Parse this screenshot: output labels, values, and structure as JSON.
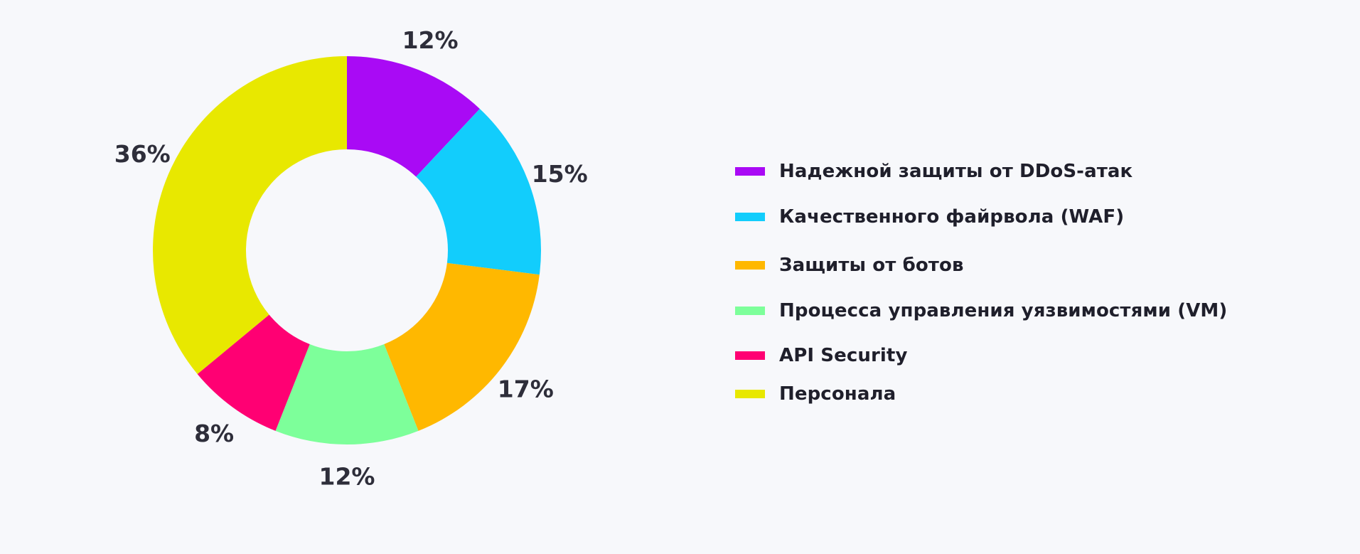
{
  "chart_data": {
    "type": "donut",
    "title": "",
    "start_angle_deg": 0,
    "direction": "clockwise",
    "slices": [
      {
        "label": "Надежной защиты от DDoS-атак",
        "value": 12,
        "value_label": "12%",
        "color": "#a90af5"
      },
      {
        "label": "Качественного файрвола (WAF)",
        "value": 15,
        "value_label": "15%",
        "color": "#12cdfc"
      },
      {
        "label": "Защиты от ботов",
        "value": 17,
        "value_label": "17%",
        "color": "#ffb800"
      },
      {
        "label": "Процесса управления уязвимостями (VM)",
        "value": 12,
        "value_label": "12%",
        "color": "#7dff9a"
      },
      {
        "label": "API Security",
        "value": 8,
        "value_label": "8%",
        "color": "#ff0073"
      },
      {
        "label": "Персонала",
        "value": 36,
        "value_label": "36%",
        "color": "#e8e800"
      }
    ],
    "legend_position": "right"
  }
}
